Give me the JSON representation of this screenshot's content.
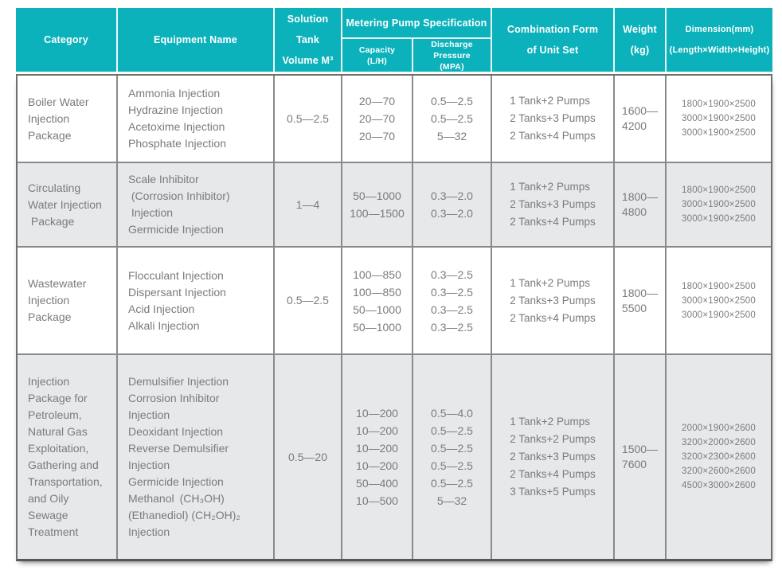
{
  "colors": {
    "header_bg": "#0cb2bb",
    "header_text": "#ffffff",
    "body_text": "#7b7b7b",
    "alt_row_bg": "#e7e8ea",
    "grid_line": "#8a8a8a"
  },
  "header": {
    "category": "Category",
    "equipment": "Equipment Name",
    "solution_tank": [
      "Solution Tank",
      "Volume M³"
    ],
    "metering": "Metering Pump Specification",
    "capacity": [
      "Capacity",
      "(L/H)"
    ],
    "discharge": [
      "Discharge Pressure",
      "(MPA)"
    ],
    "combination": [
      "Combination Form",
      "of Unit Set"
    ],
    "weight": [
      "Weight",
      "(kg)"
    ],
    "dimension": [
      "Dimension(mm)",
      "(Length×Width×Height)"
    ]
  },
  "rows": [
    {
      "category": [
        "Boiler Water",
        "Injection",
        "Package"
      ],
      "equipment": [
        "Ammonia Injection",
        "Hydrazine Injection",
        "Acetoxime Injection",
        "Phosphate Injection"
      ],
      "tank_volume": "0.5—2.5",
      "capacity": [
        "20—70",
        "20—70",
        "20—70"
      ],
      "discharge": [
        "0.5—2.5",
        "0.5—2.5",
        "5—32"
      ],
      "combination": [
        "1 Tank+2 Pumps",
        "2 Tanks+3 Pumps",
        "2 Tanks+4 Pumps"
      ],
      "weight": [
        "1600—",
        "4200"
      ],
      "dimension": [
        "1800×1900×2500",
        "3000×1900×2500",
        "3000×1900×2500"
      ]
    },
    {
      "category": [
        "Circulating",
        "Water Injection",
        " Package"
      ],
      "equipment": [
        "Scale Inhibitor",
        " (Corrosion Inhibitor)",
        " Injection",
        "Germicide Injection"
      ],
      "tank_volume": "1—4",
      "capacity": [
        "50—1000",
        "100—1500"
      ],
      "discharge": [
        "0.3—2.0",
        "0.3—2.0"
      ],
      "combination": [
        "1 Tank+2 Pumps",
        "2 Tanks+3 Pumps",
        "2 Tanks+4 Pumps"
      ],
      "weight": [
        "1800—",
        "4800"
      ],
      "dimension": [
        "1800×1900×2500",
        "3000×1900×2500",
        "3000×1900×2500"
      ]
    },
    {
      "category": [
        "Wastewater",
        "Injection",
        "Package"
      ],
      "equipment": [
        "Flocculant Injection",
        "Dispersant Injection",
        "Acid Injection",
        "Alkali Injection"
      ],
      "tank_volume": "0.5—2.5",
      "capacity": [
        "100—850",
        "100—850",
        "50—1000",
        "50—1000"
      ],
      "discharge": [
        "0.3—2.5",
        "0.3—2.5",
        "0.3—2.5",
        "0.3—2.5"
      ],
      "combination": [
        "1 Tank+2 Pumps",
        "2 Tanks+3 Pumps",
        "2 Tanks+4 Pumps"
      ],
      "weight": [
        "1800—",
        "5500"
      ],
      "dimension": [
        "1800×1900×2500",
        "3000×1900×2500",
        "3000×1900×2500"
      ]
    },
    {
      "category": [
        "Injection",
        "Package for",
        "Petroleum,",
        "Natural Gas",
        "Exploitation,",
        "Gathering and",
        "Transportation,",
        "and Oily",
        "Sewage",
        "Treatment"
      ],
      "equipment": [
        "Demulsifier Injection",
        "Corrosion Inhibitor",
        "Injection",
        "Deoxidant Injection",
        "Reverse Demulsifier",
        "Injection",
        "Germicide Injection",
        "Methanol (CH₃OH)",
        "(Ethanediol) (CH₂OH)₂",
        "Injection"
      ],
      "tank_volume": "0.5—20",
      "capacity": [
        "10—200",
        "10—200",
        "10—200",
        "10—200",
        "50—400",
        "10—500"
      ],
      "discharge": [
        "0.5—4.0",
        "0.5—2.5",
        "0.5—2.5",
        "0.5—2.5",
        "0.5—2.5",
        "5—32"
      ],
      "combination": [
        "1 Tank+2 Pumps",
        "2 Tanks+2 Pumps",
        "2 Tanks+3 Pumps",
        "2 Tanks+4 Pumps",
        "3 Tanks+5 Pumps"
      ],
      "weight": [
        "1500—",
        "7600"
      ],
      "dimension": [
        "2000×1900×2600",
        "3200×2000×2600",
        "3200×2300×2600",
        "3200×2600×2600",
        "4500×3000×2600"
      ]
    }
  ]
}
